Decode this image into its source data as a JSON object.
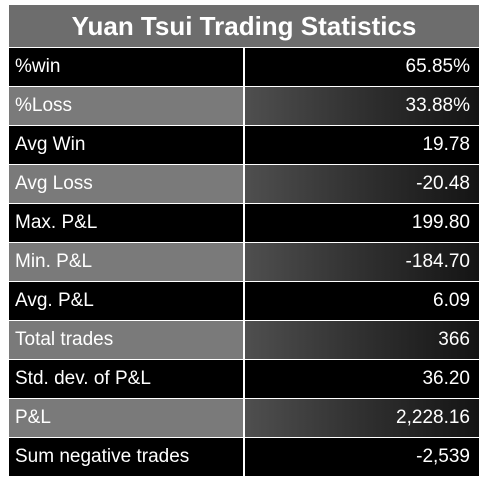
{
  "title": "Yuan Tsui Trading Statistics",
  "rows": [
    {
      "label": "%win",
      "value": "65.85%"
    },
    {
      "label": "%Loss",
      "value": "33.88%"
    },
    {
      "label": "Avg Win",
      "value": "19.78"
    },
    {
      "label": "Avg Loss",
      "value": "-20.48"
    },
    {
      "label": "Max. P&L",
      "value": "199.80"
    },
    {
      "label": "Min. P&L",
      "value": "-184.70"
    },
    {
      "label": "Avg. P&L",
      "value": "6.09"
    },
    {
      "label": "Total trades",
      "value": "366"
    },
    {
      "label": "Std. dev. of P&L",
      "value": "36.20"
    },
    {
      "label": "P&L",
      "value": "2,228.16"
    },
    {
      "label": "Sum negative trades",
      "value": "-2,539"
    }
  ],
  "colors": {
    "title_bg": "#6d6d6d",
    "row_dark": "#000000",
    "row_light": "#7a7a7a",
    "text": "#ffffff"
  }
}
